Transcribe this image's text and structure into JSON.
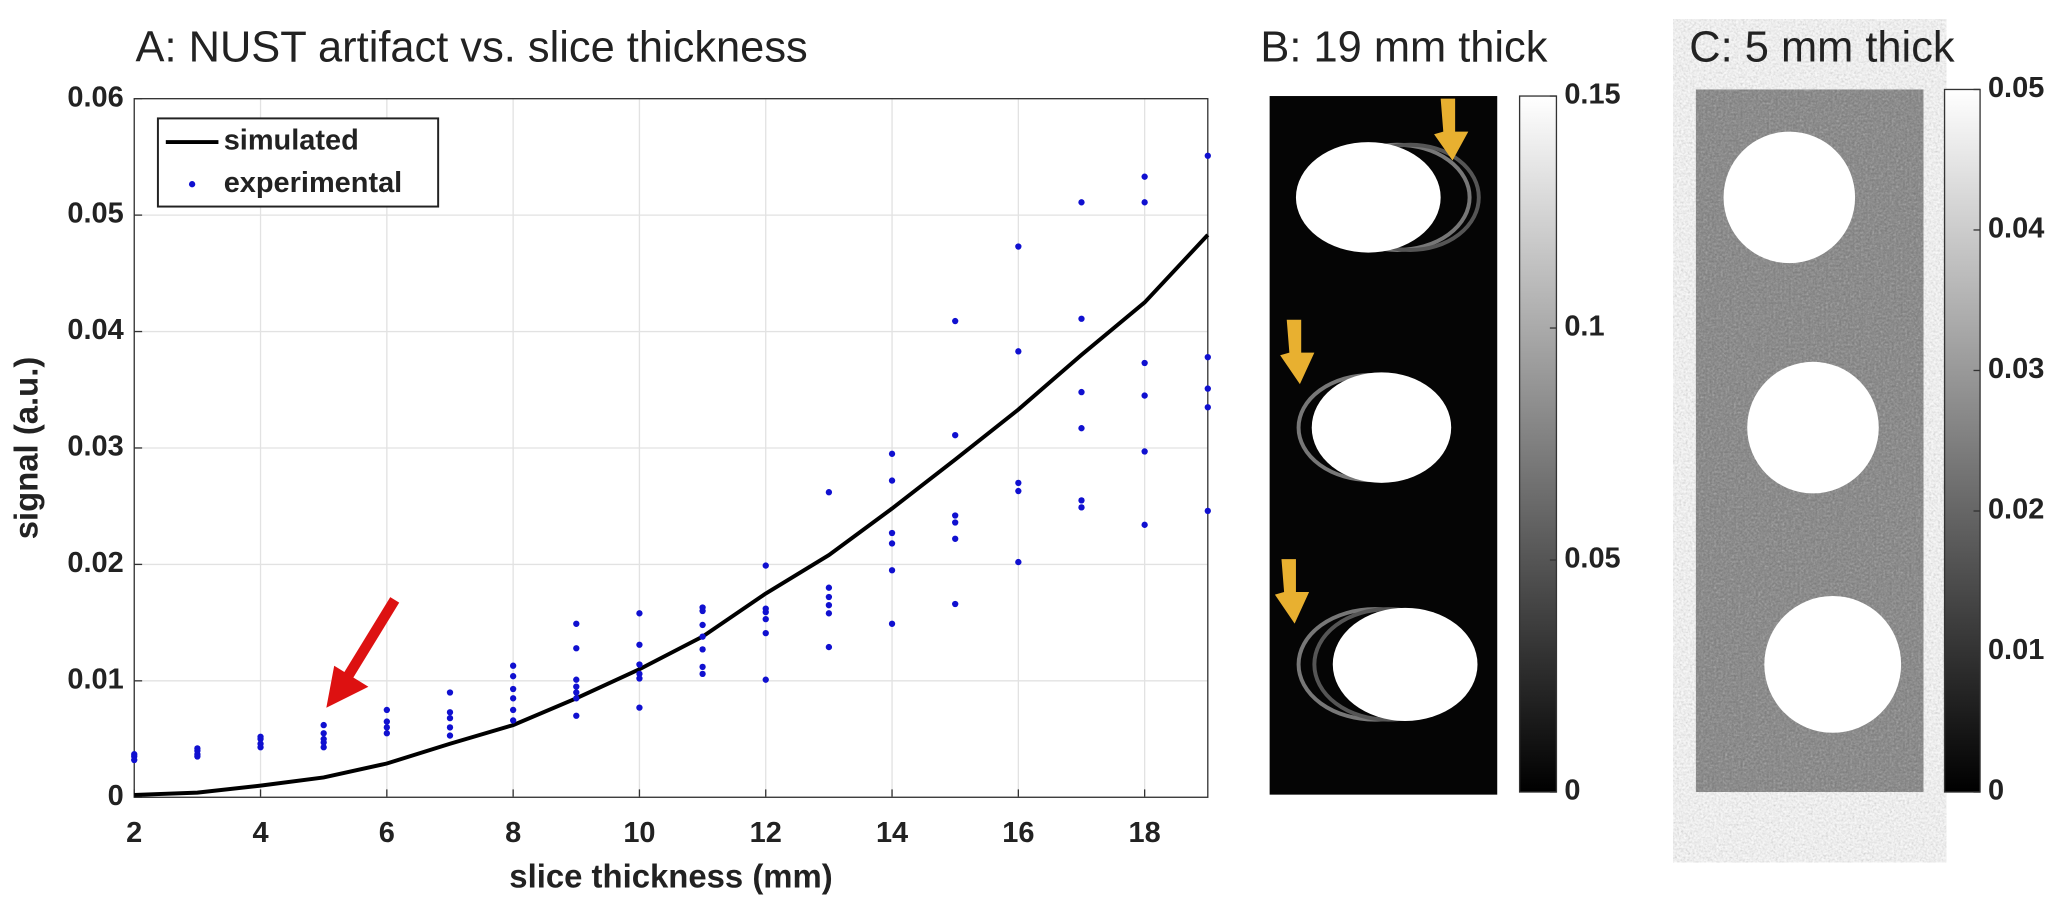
{
  "chart_data": [
    {
      "type": "scatter",
      "title": "A: NUST artifact vs. slice thickness",
      "xlabel": "slice thickness (mm)",
      "ylabel": "signal (a.u.)",
      "xlim": [
        2,
        19
      ],
      "xticks": [
        2,
        4,
        6,
        8,
        10,
        12,
        14,
        16,
        18
      ],
      "ylim": [
        0,
        0.06
      ],
      "yticks": [
        0,
        0.01,
        0.02,
        0.03,
        0.04,
        0.05,
        0.06
      ],
      "grid": true,
      "legend": "northwest",
      "series": [
        {
          "name": "simulated",
          "type": "line",
          "color": "#000000",
          "x": [
            2,
            3,
            4,
            5,
            6,
            7,
            8,
            9,
            10,
            11,
            12,
            13,
            14,
            15,
            16,
            17,
            18,
            19
          ],
          "values": [
            0.0002,
            0.0004,
            0.001,
            0.0017,
            0.0029,
            0.0046,
            0.0062,
            0.0085,
            0.011,
            0.0138,
            0.0175,
            0.0208,
            0.0248,
            0.029,
            0.0333,
            0.038,
            0.0425,
            0.0483
          ]
        },
        {
          "name": "experimental",
          "type": "scatter",
          "color": "#1010d0",
          "x": [
            2,
            2,
            2,
            3,
            3,
            3,
            3,
            4,
            4,
            4,
            4,
            5,
            5,
            5,
            5,
            5,
            6,
            6,
            6,
            6,
            7,
            7,
            7,
            7,
            7,
            8,
            8,
            8,
            8,
            8,
            8,
            9,
            9,
            9,
            9,
            9,
            9,
            9,
            10,
            10,
            10,
            10,
            10,
            10,
            11,
            11,
            11,
            11,
            11,
            11,
            11,
            12,
            12,
            12,
            12,
            12,
            12,
            13,
            13,
            13,
            13,
            13,
            13,
            14,
            14,
            14,
            14,
            14,
            14,
            15,
            15,
            15,
            15,
            15,
            15,
            16,
            16,
            16,
            16,
            16,
            17,
            17,
            17,
            17,
            17,
            17,
            18,
            18,
            18,
            18,
            18,
            18,
            19,
            19,
            19,
            19,
            19
          ],
          "values": [
            0.0037,
            0.0035,
            0.0032,
            0.0042,
            0.004,
            0.0037,
            0.0035,
            0.0052,
            0.005,
            0.0046,
            0.0043,
            0.0062,
            0.0055,
            0.005,
            0.0047,
            0.0043,
            0.0075,
            0.0065,
            0.006,
            0.0055,
            0.009,
            0.0073,
            0.0068,
            0.006,
            0.0053,
            0.0113,
            0.0104,
            0.0093,
            0.0085,
            0.0075,
            0.0066,
            0.0149,
            0.0128,
            0.0101,
            0.0095,
            0.009,
            0.0085,
            0.007,
            0.0158,
            0.0131,
            0.0114,
            0.0106,
            0.0102,
            0.0077,
            0.0163,
            0.016,
            0.0148,
            0.0138,
            0.0127,
            0.0112,
            0.0106,
            0.0199,
            0.0162,
            0.0159,
            0.0153,
            0.0141,
            0.0101,
            0.0262,
            0.018,
            0.0172,
            0.0165,
            0.0158,
            0.0129,
            0.0295,
            0.0272,
            0.0227,
            0.0218,
            0.0195,
            0.0149,
            0.0409,
            0.0311,
            0.0242,
            0.0236,
            0.0222,
            0.0166,
            0.0473,
            0.0383,
            0.027,
            0.0263,
            0.0202,
            0.0511,
            0.0411,
            0.0348,
            0.0317,
            0.0255,
            0.0249,
            0.0533,
            0.0511,
            0.0373,
            0.0345,
            0.0297,
            0.0234,
            0.0551,
            0.0378,
            0.0351,
            0.0335,
            0.0246
          ]
        }
      ]
    },
    {
      "type": "image",
      "title": "B: 19 mm thick",
      "colormap": "gray",
      "clim": [
        0,
        0.15
      ],
      "cticks": [
        0,
        0.05,
        0.1,
        0.15
      ]
    },
    {
      "type": "image",
      "title": "C: 5 mm thick",
      "colormap": "gray",
      "clim": [
        0,
        0.05
      ],
      "cticks": [
        0,
        0.01,
        0.02,
        0.03,
        0.04,
        0.05
      ]
    }
  ]
}
